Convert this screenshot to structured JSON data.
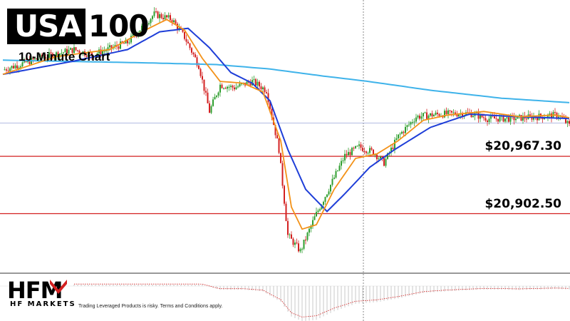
{
  "title": {
    "box": "USA",
    "rest": "100"
  },
  "subtitle": "10-Minute Chart",
  "logo": {
    "text": "HFM",
    "tagline": "HF MARKETS"
  },
  "disclaimer": "Trading Leveraged Products is risky. Terms and Conditions apply.",
  "colors": {
    "bull": "#2e9e2e",
    "bear": "#d32020",
    "ma_fast": "#f39219",
    "ma_mid": "#1e3ed8",
    "ma_slow": "#3fb3ea",
    "level": "#d32020",
    "current_price_line": "#9aa6d8"
  },
  "chart_data": {
    "type": "candlestick",
    "instrument": "USA100",
    "timeframe": "10-Minute",
    "ylim": [
      20836,
      21144
    ],
    "levels": [
      {
        "label": "$20,967.30",
        "value": 20967.3
      },
      {
        "label": "$20,902.50",
        "value": 20902.5
      }
    ],
    "current_price": 21005,
    "anchors": [
      [
        0,
        21065
      ],
      [
        20,
        21078
      ],
      [
        40,
        21088
      ],
      [
        50,
        21082
      ],
      [
        70,
        21096
      ],
      [
        85,
        21128
      ],
      [
        95,
        21122
      ],
      [
        102,
        21102
      ],
      [
        110,
        21070
      ],
      [
        116,
        21018
      ],
      [
        122,
        21048
      ],
      [
        130,
        21045
      ],
      [
        140,
        21052
      ],
      [
        148,
        21042
      ],
      [
        155,
        20975
      ],
      [
        160,
        20878
      ],
      [
        167,
        20860
      ],
      [
        175,
        20898
      ],
      [
        184,
        20935
      ],
      [
        192,
        20968
      ],
      [
        200,
        20978
      ],
      [
        208,
        20972
      ],
      [
        214,
        20960
      ],
      [
        222,
        20990
      ],
      [
        232,
        21012
      ],
      [
        245,
        21015
      ],
      [
        262,
        21016
      ],
      [
        272,
        21010
      ],
      [
        285,
        21010
      ],
      [
        300,
        21012
      ],
      [
        312,
        21014
      ],
      [
        318,
        21002
      ]
    ],
    "ma_fast": [
      [
        0,
        21060
      ],
      [
        30,
        21080
      ],
      [
        60,
        21088
      ],
      [
        80,
        21110
      ],
      [
        92,
        21122
      ],
      [
        102,
        21110
      ],
      [
        112,
        21078
      ],
      [
        122,
        21052
      ],
      [
        135,
        21050
      ],
      [
        146,
        21040
      ],
      [
        156,
        20985
      ],
      [
        162,
        20910
      ],
      [
        168,
        20885
      ],
      [
        176,
        20890
      ],
      [
        186,
        20930
      ],
      [
        198,
        20965
      ],
      [
        210,
        20970
      ],
      [
        222,
        20985
      ],
      [
        236,
        21008
      ],
      [
        250,
        21014
      ],
      [
        270,
        21018
      ],
      [
        290,
        21012
      ],
      [
        310,
        21014
      ],
      [
        318,
        21011
      ]
    ],
    "ma_mid": [
      [
        0,
        21060
      ],
      [
        40,
        21075
      ],
      [
        70,
        21088
      ],
      [
        88,
        21108
      ],
      [
        104,
        21112
      ],
      [
        116,
        21090
      ],
      [
        128,
        21062
      ],
      [
        140,
        21050
      ],
      [
        150,
        21030
      ],
      [
        160,
        20975
      ],
      [
        170,
        20930
      ],
      [
        182,
        20905
      ],
      [
        192,
        20925
      ],
      [
        206,
        20955
      ],
      [
        220,
        20975
      ],
      [
        240,
        21000
      ],
      [
        262,
        21015
      ],
      [
        290,
        21012
      ],
      [
        318,
        21010
      ]
    ],
    "ma_slow": [
      [
        0,
        21076
      ],
      [
        80,
        21073
      ],
      [
        120,
        21071
      ],
      [
        150,
        21066
      ],
      [
        180,
        21058
      ],
      [
        205,
        21052
      ],
      [
        240,
        21042
      ],
      [
        280,
        21033
      ],
      [
        318,
        21028
      ]
    ]
  }
}
